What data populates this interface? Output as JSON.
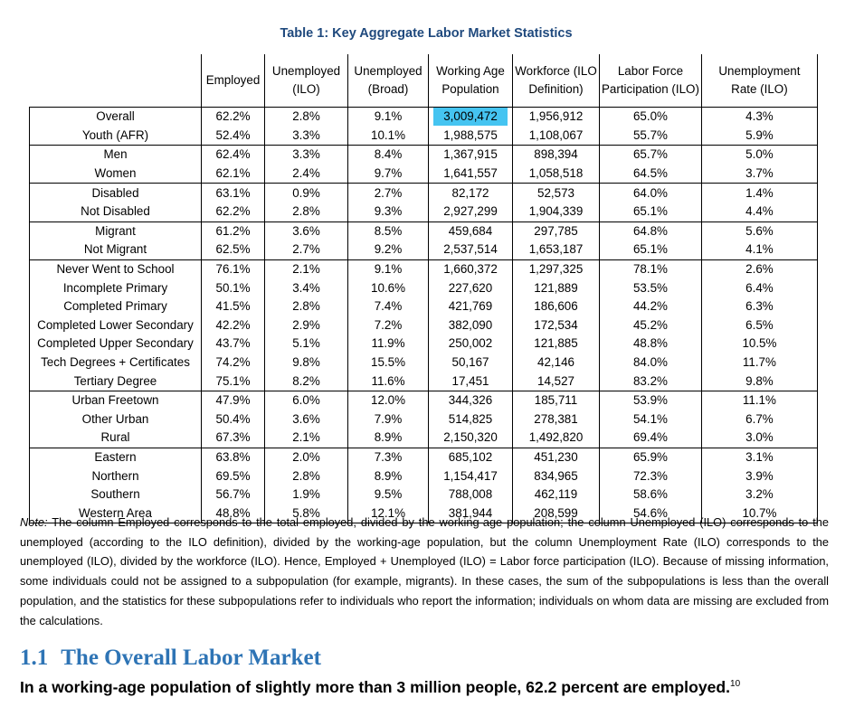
{
  "table_title": "Table 1: Key Aggregate Labor Market Statistics",
  "columns": [
    [
      "Employed"
    ],
    [
      "Unemployed",
      "(ILO)"
    ],
    [
      "Unemployed",
      "(Broad)"
    ],
    [
      "Working Age",
      "Population"
    ],
    [
      "Workforce (ILO",
      "Definition)"
    ],
    [
      "Labor Force",
      "Participation (ILO)"
    ],
    [
      "Unemployment",
      "Rate (ILO)"
    ]
  ],
  "groups": [
    [
      [
        "Overall",
        "62.2%",
        "2.8%",
        "9.1%",
        "3,009,472",
        "1,956,912",
        "65.0%",
        "4.3%"
      ],
      [
        "Youth (AFR)",
        "52.4%",
        "3.3%",
        "10.1%",
        "1,988,575",
        "1,108,067",
        "55.7%",
        "5.9%"
      ]
    ],
    [
      [
        "Men",
        "62.4%",
        "3.3%",
        "8.4%",
        "1,367,915",
        "898,394",
        "65.7%",
        "5.0%"
      ],
      [
        "Women",
        "62.1%",
        "2.4%",
        "9.7%",
        "1,641,557",
        "1,058,518",
        "64.5%",
        "3.7%"
      ]
    ],
    [
      [
        "Disabled",
        "63.1%",
        "0.9%",
        "2.7%",
        "82,172",
        "52,573",
        "64.0%",
        "1.4%"
      ],
      [
        "Not Disabled",
        "62.2%",
        "2.8%",
        "9.3%",
        "2,927,299",
        "1,904,339",
        "65.1%",
        "4.4%"
      ]
    ],
    [
      [
        "Migrant",
        "61.2%",
        "3.6%",
        "8.5%",
        "459,684",
        "297,785",
        "64.8%",
        "5.6%"
      ],
      [
        "Not Migrant",
        "62.5%",
        "2.7%",
        "9.2%",
        "2,537,514",
        "1,653,187",
        "65.1%",
        "4.1%"
      ]
    ],
    [
      [
        "Never Went to School",
        "76.1%",
        "2.1%",
        "9.1%",
        "1,660,372",
        "1,297,325",
        "78.1%",
        "2.6%"
      ],
      [
        "Incomplete Primary",
        "50.1%",
        "3.4%",
        "10.6%",
        "227,620",
        "121,889",
        "53.5%",
        "6.4%"
      ],
      [
        "Completed Primary",
        "41.5%",
        "2.8%",
        "7.4%",
        "421,769",
        "186,606",
        "44.2%",
        "6.3%"
      ],
      [
        "Completed Lower Secondary",
        "42.2%",
        "2.9%",
        "7.2%",
        "382,090",
        "172,534",
        "45.2%",
        "6.5%"
      ],
      [
        "Completed Upper Secondary",
        "43.7%",
        "5.1%",
        "11.9%",
        "250,002",
        "121,885",
        "48.8%",
        "10.5%"
      ],
      [
        "Tech Degrees + Certificates",
        "74.2%",
        "9.8%",
        "15.5%",
        "50,167",
        "42,146",
        "84.0%",
        "11.7%"
      ],
      [
        "Tertiary Degree",
        "75.1%",
        "8.2%",
        "11.6%",
        "17,451",
        "14,527",
        "83.2%",
        "9.8%"
      ]
    ],
    [
      [
        "Urban Freetown",
        "47.9%",
        "6.0%",
        "12.0%",
        "344,326",
        "185,711",
        "53.9%",
        "11.1%"
      ],
      [
        "Other Urban",
        "50.4%",
        "3.6%",
        "7.9%",
        "514,825",
        "278,381",
        "54.1%",
        "6.7%"
      ],
      [
        "Rural",
        "67.3%",
        "2.1%",
        "8.9%",
        "2,150,320",
        "1,492,820",
        "69.4%",
        "3.0%"
      ]
    ],
    [
      [
        "Eastern",
        "63.8%",
        "2.0%",
        "7.3%",
        "685,102",
        "451,230",
        "65.9%",
        "3.1%"
      ],
      [
        "Northern",
        "69.5%",
        "2.8%",
        "8.9%",
        "1,154,417",
        "834,965",
        "72.3%",
        "3.9%"
      ],
      [
        "Southern",
        "56.7%",
        "1.9%",
        "9.5%",
        "788,008",
        "462,119",
        "58.6%",
        "3.2%"
      ],
      [
        "Western Area",
        "48.8%",
        "5.8%",
        "12.1%",
        "381,944",
        "208,599",
        "54.6%",
        "10.7%"
      ]
    ]
  ],
  "highlight_color": "#45c4f1",
  "note_label": "Note:",
  "note_text": " The column Employed corresponds to the total employed, divided by the working-age population; the column Unemployed (ILO) corresponds to the unemployed (according to the ILO definition), divided by the working-age population, but the column Unemployment Rate (ILO) corresponds to the unemployed (ILO), divided by the workforce (ILO). Hence, Employed + Unemployed (ILO) = Labor force participation (ILO). Because of missing information, some individuals could not be assigned to a subpopulation (for example, migrants). In these cases, the sum of the subpopulations is less than the overall population, and the statistics for these subpopulations refer to individuals who report the information; individuals on whom data are missing are excluded from the calculations.",
  "section_number": "1.1",
  "section_title": "The Overall Labor Market",
  "lead_text": "In a working-age population of slightly more than 3 million people, 62.2 percent are employed.",
  "lead_footnote": "10"
}
